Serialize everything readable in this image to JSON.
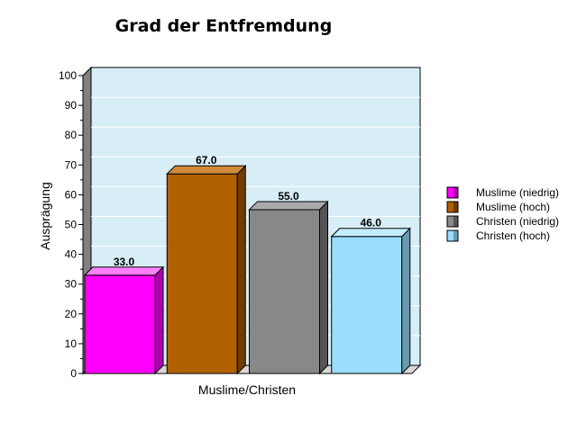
{
  "chart_data": {
    "type": "bar",
    "title": "Grad der Entfremdung",
    "xlabel": "Muslime/Christen",
    "ylabel": "Ausprägung",
    "ylim": [
      0,
      100
    ],
    "y_ticks": [
      0,
      10,
      20,
      30,
      40,
      50,
      60,
      70,
      80,
      90,
      100
    ],
    "grid": true,
    "legend_position": "right",
    "series": [
      {
        "name": "Muslime (niedrig)",
        "value": 33.0,
        "label": "33.0",
        "color": "#ff00ff",
        "side_color": "#b000b0",
        "top_color": "#ff80ff"
      },
      {
        "name": "Muslime (hoch)",
        "value": 67.0,
        "label": "67.0",
        "color": "#b06000",
        "side_color": "#703c00",
        "top_color": "#d08a3a"
      },
      {
        "name": "Christen (niedrig)",
        "value": 55.0,
        "label": "55.0",
        "color": "#888888",
        "side_color": "#555555",
        "top_color": "#aaaaaa"
      },
      {
        "name": "Christen (hoch)",
        "value": 46.0,
        "label": "46.0",
        "color": "#99ddff",
        "side_color": "#6a9ab0",
        "top_color": "#c4ecff"
      }
    ],
    "plot_background": "#d8eef6"
  }
}
